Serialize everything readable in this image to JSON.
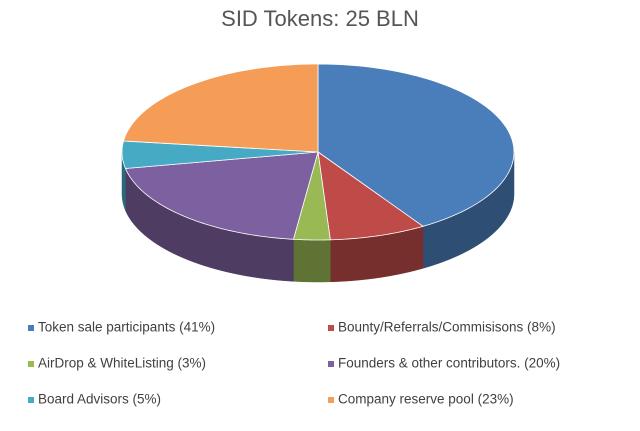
{
  "chart_data": {
    "type": "pie",
    "title": "SID Tokens: 25 BLN",
    "categories": [
      "Token sale participants (41%)",
      "Bounty/Referrals/Commisisons (8%)",
      "AirDrop & WhiteListing (3%)",
      "Founders & other contributors. (20%)",
      "Board Advisors (5%)",
      "Company reserve pool (23%)"
    ],
    "values": [
      41,
      8,
      3,
      20,
      5,
      23
    ],
    "colors": [
      "#4a7ebb",
      "#be4b48",
      "#98b954",
      "#7d60a0",
      "#46aac5",
      "#f59d56"
    ]
  }
}
